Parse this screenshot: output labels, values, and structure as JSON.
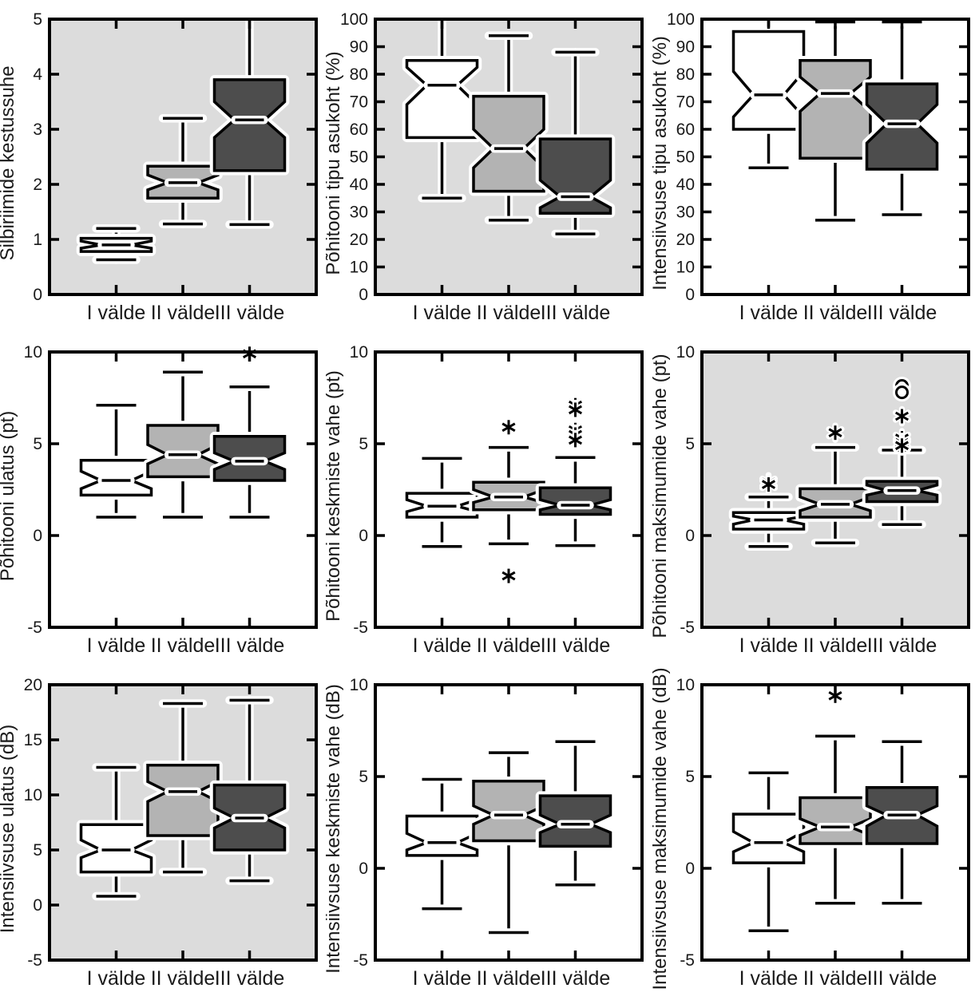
{
  "figure": {
    "rows": 3,
    "cols": 3,
    "description": "3x3 grid of notched box plots comparing Estonian quantity degrees"
  },
  "categories": [
    "I välde",
    "II välde",
    "III välde"
  ],
  "colors": {
    "box_fills": [
      "#ffffff",
      "#b3b3b3",
      "#4d4d4d"
    ],
    "stroke": "#000000",
    "halo": "#ffffff",
    "text": "#1a1a1a",
    "panel_bg_gray": "#dcdcdc",
    "panel_bg_white": "#ffffff"
  },
  "chart_data": [
    {
      "type": "box",
      "ylabel": "Silbiriimide kestussuhe",
      "ylim": [
        0,
        5
      ],
      "yticks": [
        0,
        1,
        2,
        3,
        4,
        5
      ],
      "plot_bg": "gray",
      "categories": [
        "I välde",
        "II välde",
        "III välde"
      ],
      "boxes": [
        {
          "category": "I välde",
          "whisker_low": 0.63,
          "q1": 0.78,
          "notch_low": 0.84,
          "median": 0.9,
          "notch_high": 0.97,
          "q3": 1.02,
          "whisker_high": 1.2,
          "whisker_high_clipped": false,
          "outliers_star": [],
          "outliers_circle": []
        },
        {
          "category": "II välde",
          "whisker_low": 1.28,
          "q1": 1.75,
          "notch_low": 1.9,
          "median": 2.03,
          "notch_high": 2.17,
          "q3": 2.33,
          "whisker_high": 3.2,
          "whisker_high_clipped": false,
          "outliers_star": [],
          "outliers_circle": []
        },
        {
          "category": "III välde",
          "whisker_low": 1.27,
          "q1": 2.25,
          "notch_low": 2.85,
          "median": 3.17,
          "notch_high": 3.5,
          "q3": 3.9,
          "whisker_high": 5.3,
          "whisker_high_clipped": true,
          "outliers_star": [],
          "outliers_circle": []
        }
      ]
    },
    {
      "type": "box",
      "ylabel": "Põhitooni tipu asukoht (%)",
      "ylim": [
        0,
        100
      ],
      "yticks": [
        0,
        10,
        20,
        30,
        40,
        50,
        60,
        70,
        80,
        90,
        100
      ],
      "plot_bg": "gray",
      "categories": [
        "I välde",
        "II välde",
        "III välde"
      ],
      "boxes": [
        {
          "category": "I välde",
          "whisker_low": 35,
          "q1": 57.0,
          "notch_low": 69.0,
          "median": 76.0,
          "notch_high": 82.5,
          "q3": 85.0,
          "whisker_high": 104,
          "whisker_high_clipped": true,
          "outliers_star": [],
          "outliers_circle": []
        },
        {
          "category": "II välde",
          "whisker_low": 27,
          "q1": 37.5,
          "notch_low": 46.0,
          "median": 53.0,
          "notch_high": 60.0,
          "q3": 72.0,
          "whisker_high": 94,
          "whisker_high_clipped": false,
          "outliers_star": [],
          "outliers_circle": []
        },
        {
          "category": "III välde",
          "whisker_low": 22,
          "q1": 29.5,
          "notch_low": 31.5,
          "median": 35.5,
          "notch_high": 41.5,
          "q3": 56.5,
          "whisker_high": 88,
          "whisker_high_clipped": false,
          "outliers_star": [],
          "outliers_circle": []
        }
      ]
    },
    {
      "type": "box",
      "ylabel": "Intensiivsuse tipu asukoht (%)",
      "ylim": [
        0,
        100
      ],
      "yticks": [
        0,
        10,
        20,
        30,
        40,
        50,
        60,
        70,
        80,
        90,
        100
      ],
      "plot_bg": "white",
      "categories": [
        "I välde",
        "II välde",
        "III välde"
      ],
      "boxes": [
        {
          "category": "I välde",
          "whisker_low": 46,
          "q1": 60.0,
          "notch_low": 64.5,
          "median": 72.5,
          "notch_high": 81.0,
          "q3": 95.5,
          "whisker_high": 101,
          "whisker_high_clipped": true,
          "outliers_star": [],
          "outliers_circle": []
        },
        {
          "category": "II välde",
          "whisker_low": 27,
          "q1": 49.5,
          "notch_low": 66.5,
          "median": 73.0,
          "notch_high": 79.0,
          "q3": 85.0,
          "whisker_high": 99,
          "whisker_high_clipped": false,
          "outliers_star": [],
          "outliers_circle": []
        },
        {
          "category": "III välde",
          "whisker_low": 29,
          "q1": 45.5,
          "notch_low": 55.0,
          "median": 62.0,
          "notch_high": 69.0,
          "q3": 76.5,
          "whisker_high": 99,
          "whisker_high_clipped": false,
          "outliers_star": [],
          "outliers_circle": []
        }
      ]
    },
    {
      "type": "box",
      "ylabel": "Põhitooni ulatus (pt)",
      "ylim": [
        -5,
        10
      ],
      "yticks": [
        -5,
        0,
        5,
        10
      ],
      "plot_bg": "white",
      "categories": [
        "I välde",
        "II välde",
        "III välde"
      ],
      "boxes": [
        {
          "category": "I välde",
          "whisker_low": 1.0,
          "q1": 2.2,
          "notch_low": 2.55,
          "median": 3.0,
          "notch_high": 3.5,
          "q3": 4.1,
          "whisker_high": 7.1,
          "whisker_high_clipped": false,
          "outliers_star": [],
          "outliers_circle": []
        },
        {
          "category": "II välde",
          "whisker_low": 1.0,
          "q1": 3.2,
          "notch_low": 3.9,
          "median": 4.4,
          "notch_high": 4.95,
          "q3": 6.0,
          "whisker_high": 8.9,
          "whisker_high_clipped": false,
          "outliers_star": [],
          "outliers_circle": []
        },
        {
          "category": "III välde",
          "whisker_low": 1.0,
          "q1": 3.0,
          "notch_low": 3.6,
          "median": 4.05,
          "notch_high": 4.5,
          "q3": 5.4,
          "whisker_high": 8.1,
          "whisker_high_clipped": false,
          "outliers_star": [
            9.9
          ],
          "outliers_circle": []
        }
      ]
    },
    {
      "type": "box",
      "ylabel": "Põhitooni keskmiste vahe (pt)",
      "ylim": [
        -5,
        10
      ],
      "yticks": [
        -5,
        0,
        5,
        10
      ],
      "plot_bg": "white",
      "categories": [
        "I välde",
        "II välde",
        "III välde"
      ],
      "boxes": [
        {
          "category": "I välde",
          "whisker_low": -0.6,
          "q1": 1.0,
          "notch_low": 1.3,
          "median": 1.6,
          "notch_high": 1.95,
          "q3": 2.3,
          "whisker_high": 4.2,
          "whisker_high_clipped": false,
          "outliers_star": [],
          "outliers_circle": []
        },
        {
          "category": "II välde",
          "whisker_low": -0.45,
          "q1": 1.4,
          "notch_low": 1.8,
          "median": 2.1,
          "notch_high": 2.5,
          "q3": 2.9,
          "whisker_high": 4.8,
          "whisker_high_clipped": false,
          "outliers_star": [
            5.9,
            -2.2
          ],
          "outliers_circle": []
        },
        {
          "category": "III välde",
          "whisker_low": -0.55,
          "q1": 1.15,
          "notch_low": 1.4,
          "median": 1.65,
          "notch_high": 1.95,
          "q3": 2.6,
          "whisker_high": 4.25,
          "whisker_high_clipped": false,
          "outliers_star": [
            7.1,
            6.85,
            5.75,
            5.5,
            5.2
          ],
          "outliers_circle": []
        }
      ]
    },
    {
      "type": "box",
      "ylabel": "Põhitooni maksimumide vahe (pt)",
      "ylim": [
        -5,
        10
      ],
      "yticks": [
        -5,
        0,
        5,
        10
      ],
      "plot_bg": "gray",
      "categories": [
        "I välde",
        "II välde",
        "III välde"
      ],
      "boxes": [
        {
          "category": "I välde",
          "whisker_low": -0.6,
          "q1": 0.35,
          "notch_low": 0.62,
          "median": 0.85,
          "notch_high": 1.05,
          "q3": 1.25,
          "whisker_high": 2.1,
          "whisker_high_clipped": false,
          "outliers_star": [
            2.9,
            2.78
          ],
          "outliers_circle": []
        },
        {
          "category": "II välde",
          "whisker_low": -0.4,
          "q1": 1.0,
          "notch_low": 1.35,
          "median": 1.7,
          "notch_high": 2.1,
          "q3": 2.55,
          "whisker_high": 4.8,
          "whisker_high_clipped": false,
          "outliers_star": [
            5.6
          ],
          "outliers_circle": []
        },
        {
          "category": "III välde",
          "whisker_low": 0.6,
          "q1": 1.85,
          "notch_low": 2.2,
          "median": 2.45,
          "notch_high": 2.75,
          "q3": 2.95,
          "whisker_high": 4.65,
          "whisker_high_clipped": false,
          "outliers_star": [
            6.5,
            5.3,
            5.05,
            4.9
          ],
          "outliers_circle": [
            8.15,
            7.8
          ]
        }
      ]
    },
    {
      "type": "box",
      "ylabel": "Intensiivsuse ulatus (dB)",
      "ylim": [
        -5,
        20
      ],
      "yticks": [
        -5,
        0,
        5,
        10,
        15,
        20
      ],
      "plot_bg": "gray",
      "categories": [
        "I välde",
        "II välde",
        "III välde"
      ],
      "boxes": [
        {
          "category": "I välde",
          "whisker_low": 0.8,
          "q1": 3.0,
          "notch_low": 4.3,
          "median": 5.0,
          "notch_high": 5.9,
          "q3": 7.3,
          "whisker_high": 12.5,
          "whisker_high_clipped": false,
          "outliers_star": [],
          "outliers_circle": []
        },
        {
          "category": "II välde",
          "whisker_low": 3.0,
          "q1": 6.3,
          "notch_low": 9.4,
          "median": 10.3,
          "notch_high": 11.2,
          "q3": 12.7,
          "whisker_high": 18.3,
          "whisker_high_clipped": false,
          "outliers_star": [],
          "outliers_circle": []
        },
        {
          "category": "III välde",
          "whisker_low": 2.2,
          "q1": 5.0,
          "notch_low": 7.0,
          "median": 7.9,
          "notch_high": 8.8,
          "q3": 10.9,
          "whisker_high": 18.6,
          "whisker_high_clipped": false,
          "outliers_star": [],
          "outliers_circle": []
        }
      ]
    },
    {
      "type": "box",
      "ylabel": "Intensiivsuse keskmiste vahe (dB)",
      "ylim": [
        -5,
        10
      ],
      "yticks": [
        -5,
        0,
        5,
        10
      ],
      "plot_bg": "white",
      "categories": [
        "I välde",
        "II välde",
        "III välde"
      ],
      "boxes": [
        {
          "category": "I välde",
          "whisker_low": -2.2,
          "q1": 0.7,
          "notch_low": 1.0,
          "median": 1.4,
          "notch_high": 1.9,
          "q3": 2.85,
          "whisker_high": 4.85,
          "whisker_high_clipped": false,
          "outliers_star": [],
          "outliers_circle": []
        },
        {
          "category": "II välde",
          "whisker_low": -3.5,
          "q1": 1.5,
          "notch_low": 2.4,
          "median": 2.9,
          "notch_high": 3.4,
          "q3": 4.75,
          "whisker_high": 6.3,
          "whisker_high_clipped": false,
          "outliers_star": [],
          "outliers_circle": []
        },
        {
          "category": "III välde",
          "whisker_low": -0.9,
          "q1": 1.2,
          "notch_low": 1.95,
          "median": 2.4,
          "notch_high": 2.9,
          "q3": 3.95,
          "whisker_high": 6.9,
          "whisker_high_clipped": false,
          "outliers_star": [],
          "outliers_circle": []
        }
      ]
    },
    {
      "type": "box",
      "ylabel": "Intensiivsuse maksimumide vahe (dB)",
      "ylim": [
        -5,
        10
      ],
      "yticks": [
        -5,
        0,
        5,
        10
      ],
      "plot_bg": "white",
      "categories": [
        "I välde",
        "II välde",
        "III välde"
      ],
      "boxes": [
        {
          "category": "I välde",
          "whisker_low": -3.4,
          "q1": 0.3,
          "notch_low": 0.9,
          "median": 1.4,
          "notch_high": 2.0,
          "q3": 2.95,
          "whisker_high": 5.2,
          "whisker_high_clipped": false,
          "outliers_star": [],
          "outliers_circle": []
        },
        {
          "category": "II välde",
          "whisker_low": -1.9,
          "q1": 1.35,
          "notch_low": 1.8,
          "median": 2.25,
          "notch_high": 2.7,
          "q3": 3.85,
          "whisker_high": 7.2,
          "whisker_high_clipped": false,
          "outliers_star": [
            9.4
          ],
          "outliers_circle": []
        },
        {
          "category": "III välde",
          "whisker_low": -1.9,
          "q1": 1.35,
          "notch_low": 2.3,
          "median": 2.9,
          "notch_high": 3.4,
          "q3": 4.4,
          "whisker_high": 6.9,
          "whisker_high_clipped": false,
          "outliers_star": [],
          "outliers_circle": []
        }
      ]
    }
  ]
}
